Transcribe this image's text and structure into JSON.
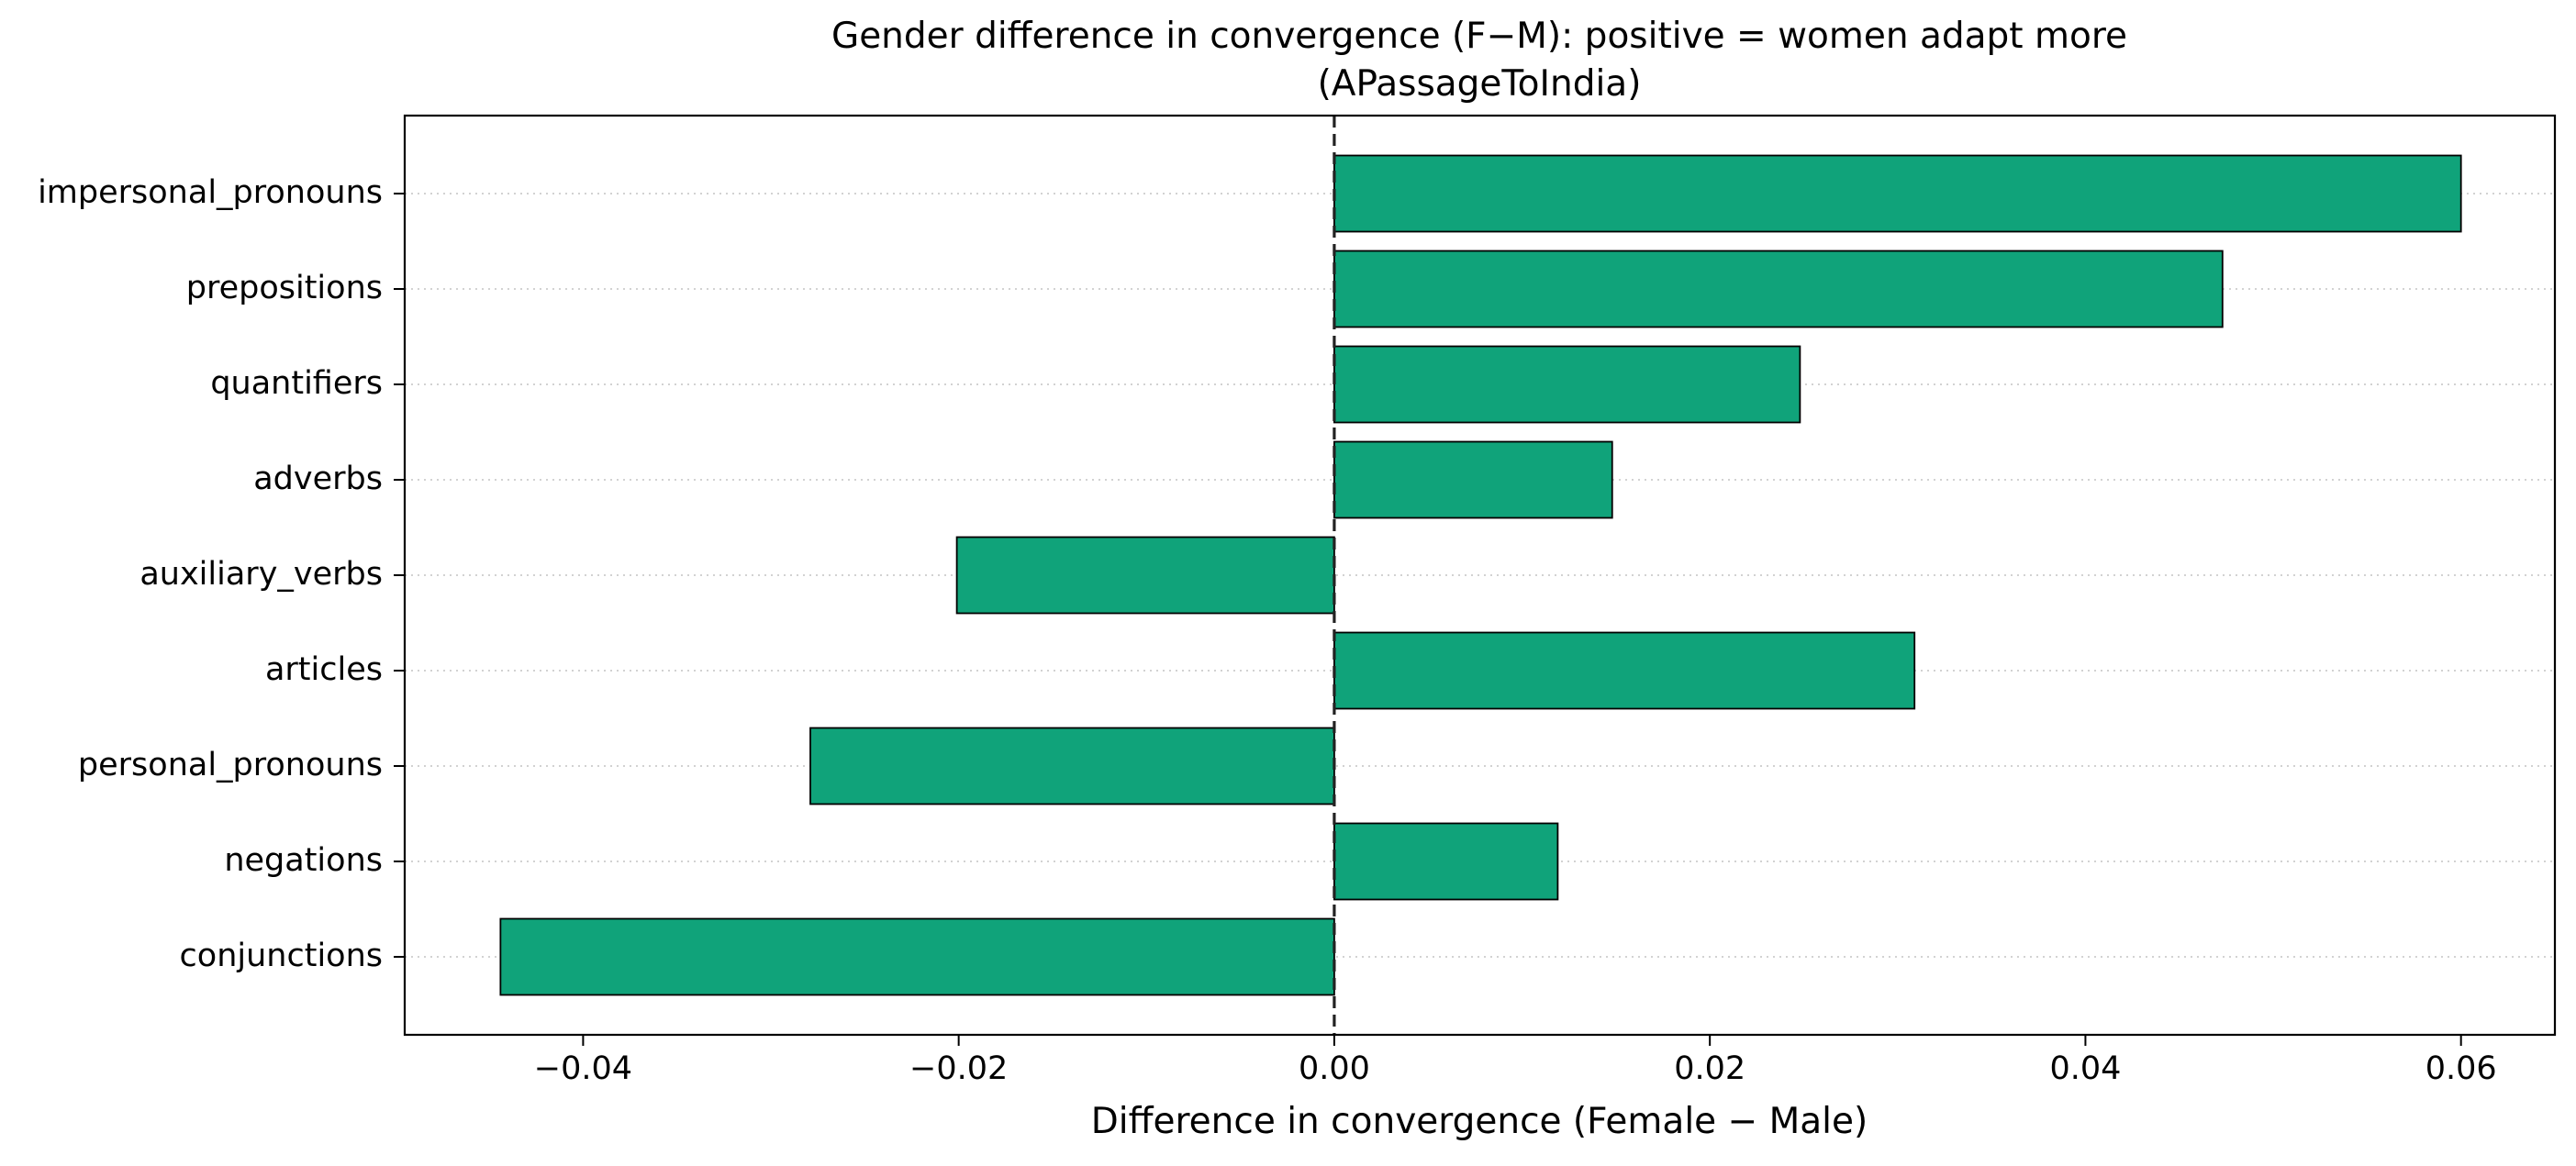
{
  "chart_data": {
    "type": "bar",
    "orientation": "horizontal",
    "title": "Gender difference in convergence (F−M): positive = women adapt more",
    "subtitle": "(APassageToIndia)",
    "xlabel": "Difference in convergence (Female − Male)",
    "ylabel": "",
    "categories": [
      "impersonal_pronouns",
      "prepositions",
      "quantifiers",
      "adverbs",
      "auxiliary_verbs",
      "articles",
      "personal_pronouns",
      "negations",
      "conjunctions"
    ],
    "values": [
      0.06,
      0.0473,
      0.0248,
      0.0148,
      -0.0201,
      0.0309,
      -0.0279,
      0.0119,
      -0.0444
    ],
    "xlim": [
      -0.0495,
      0.065
    ],
    "xticks": [
      -0.04,
      -0.02,
      0.0,
      0.02,
      0.04,
      0.06
    ],
    "xtick_labels": [
      "−0.04",
      "−0.02",
      "0.00",
      "0.02",
      "0.04",
      "0.06"
    ],
    "reference_line": 0.0,
    "grid": "y-dotted",
    "legend": "none",
    "colors": {
      "bar_fill": "#10a37a",
      "bar_edge": "#000000",
      "grid": "#cccccc",
      "zero_line": "#222222"
    }
  }
}
